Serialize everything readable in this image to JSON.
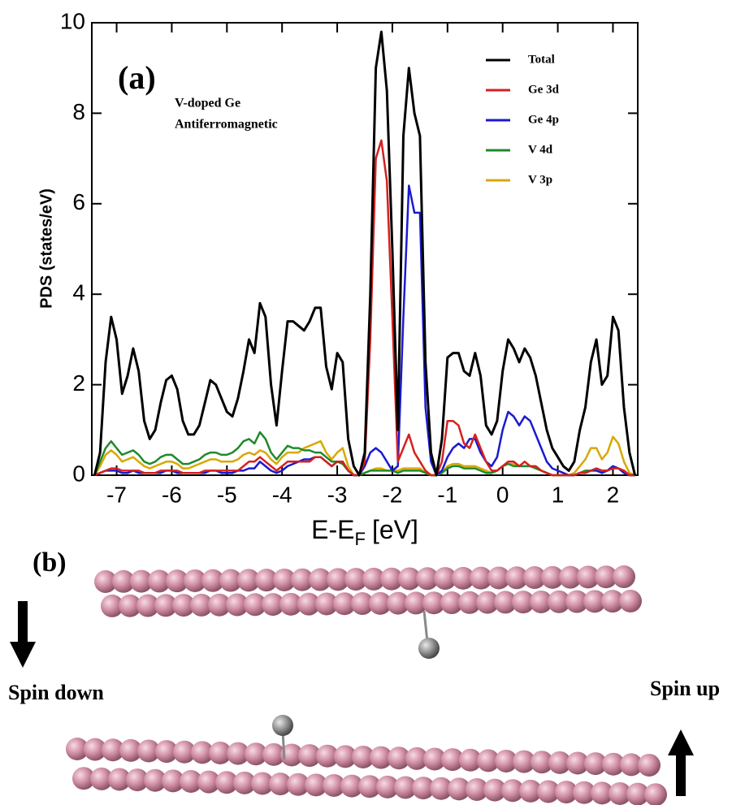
{
  "chart_data": {
    "type": "line",
    "panel_label": "(a)",
    "annotations": [
      "V-doped Ge",
      "Antiferromagnetic"
    ],
    "ylabel": "PDS (states/eV)",
    "xlabel": {
      "main": "E-E",
      "sub": "F",
      "unit": "[eV]"
    },
    "xlim": [
      -7.45,
      2.45
    ],
    "ylim": [
      0,
      10
    ],
    "xticks": [
      -7,
      -6,
      -5,
      -4,
      -3,
      -2,
      -1,
      0,
      1,
      2
    ],
    "yticks": [
      0,
      2,
      4,
      6,
      8,
      10
    ],
    "legend": "top-right",
    "x": [
      -7.4,
      -7.3,
      -7.2,
      -7.1,
      -7.0,
      -6.9,
      -6.8,
      -6.7,
      -6.6,
      -6.5,
      -6.4,
      -6.3,
      -6.2,
      -6.1,
      -6.0,
      -5.9,
      -5.8,
      -5.7,
      -5.6,
      -5.5,
      -5.4,
      -5.3,
      -5.2,
      -5.1,
      -5.0,
      -4.9,
      -4.8,
      -4.7,
      -4.6,
      -4.5,
      -4.4,
      -4.3,
      -4.2,
      -4.1,
      -4.0,
      -3.9,
      -3.8,
      -3.7,
      -3.6,
      -3.5,
      -3.4,
      -3.3,
      -3.2,
      -3.1,
      -3.0,
      -2.9,
      -2.8,
      -2.7,
      -2.6,
      -2.5,
      -2.4,
      -2.3,
      -2.2,
      -2.1,
      -2.0,
      -1.9,
      -1.8,
      -1.7,
      -1.6,
      -1.5,
      -1.4,
      -1.3,
      -1.2,
      -1.1,
      -1.0,
      -0.9,
      -0.8,
      -0.7,
      -0.6,
      -0.5,
      -0.4,
      -0.3,
      -0.2,
      -0.1,
      0.0,
      0.1,
      0.2,
      0.3,
      0.4,
      0.5,
      0.6,
      0.7,
      0.8,
      0.9,
      1.0,
      1.1,
      1.2,
      1.3,
      1.4,
      1.5,
      1.6,
      1.7,
      1.8,
      1.9,
      2.0,
      2.1,
      2.2,
      2.3,
      2.4
    ],
    "series": [
      {
        "name": "Total",
        "color": "#000000",
        "values": [
          0.0,
          0.5,
          2.5,
          3.5,
          3.0,
          1.8,
          2.2,
          2.8,
          2.3,
          1.2,
          0.8,
          1.0,
          1.6,
          2.1,
          2.2,
          1.9,
          1.2,
          0.9,
          0.9,
          1.1,
          1.6,
          2.1,
          2.0,
          1.7,
          1.4,
          1.3,
          1.7,
          2.3,
          3.0,
          2.7,
          3.8,
          3.5,
          2.0,
          1.1,
          2.3,
          3.4,
          3.4,
          3.3,
          3.2,
          3.4,
          3.7,
          3.7,
          2.4,
          1.9,
          2.7,
          2.5,
          0.8,
          0.2,
          0.0,
          0.5,
          4.0,
          9.0,
          9.8,
          8.5,
          5.0,
          1.0,
          7.5,
          9.0,
          8.0,
          7.5,
          2.5,
          0.5,
          0.0,
          0.8,
          2.6,
          2.7,
          2.7,
          2.3,
          2.2,
          2.7,
          2.2,
          1.1,
          0.9,
          1.2,
          2.3,
          3.0,
          2.8,
          2.5,
          2.8,
          2.6,
          2.2,
          1.6,
          1.0,
          0.6,
          0.4,
          0.2,
          0.1,
          0.3,
          1.0,
          1.5,
          2.5,
          3.0,
          2.0,
          2.2,
          3.5,
          3.2,
          1.5,
          0.5,
          0.0
        ]
      },
      {
        "name": "Ge 3d",
        "color": "#d42020",
        "values": [
          0,
          0.05,
          0.1,
          0.15,
          0.15,
          0.1,
          0.1,
          0.1,
          0.1,
          0.05,
          0.05,
          0.05,
          0.1,
          0.1,
          0.1,
          0.1,
          0.05,
          0.05,
          0.05,
          0.05,
          0.1,
          0.1,
          0.1,
          0.1,
          0.1,
          0.1,
          0.1,
          0.2,
          0.3,
          0.3,
          0.4,
          0.3,
          0.2,
          0.1,
          0.2,
          0.3,
          0.3,
          0.3,
          0.3,
          0.3,
          0.4,
          0.4,
          0.3,
          0.2,
          0.3,
          0.3,
          0.1,
          0.0,
          0.0,
          0.3,
          3.0,
          7.0,
          7.4,
          6.5,
          3.5,
          0.3,
          0.6,
          0.9,
          0.5,
          0.3,
          0.1,
          0.0,
          0.0,
          0.3,
          1.2,
          1.2,
          1.1,
          0.7,
          0.6,
          0.9,
          0.6,
          0.3,
          0.1,
          0.1,
          0.2,
          0.3,
          0.3,
          0.2,
          0.3,
          0.2,
          0.2,
          0.1,
          0.05,
          0.0,
          0.0,
          0.0,
          0.0,
          0.0,
          0.05,
          0.05,
          0.1,
          0.15,
          0.1,
          0.1,
          0.15,
          0.15,
          0.1,
          0.0,
          0.0
        ]
      },
      {
        "name": "Ge 4p",
        "color": "#1a1ad0",
        "values": [
          0,
          0.05,
          0.1,
          0.1,
          0.1,
          0.05,
          0.05,
          0.1,
          0.05,
          0.05,
          0.05,
          0.05,
          0.05,
          0.1,
          0.1,
          0.05,
          0.05,
          0.05,
          0.05,
          0.05,
          0.05,
          0.1,
          0.1,
          0.05,
          0.05,
          0.05,
          0.1,
          0.1,
          0.15,
          0.15,
          0.3,
          0.2,
          0.1,
          0.05,
          0.1,
          0.2,
          0.25,
          0.3,
          0.35,
          0.35,
          0.4,
          0.4,
          0.3,
          0.2,
          0.3,
          0.3,
          0.1,
          0.0,
          0.0,
          0.2,
          0.5,
          0.6,
          0.5,
          0.3,
          0.1,
          0.2,
          3.5,
          6.4,
          5.8,
          5.8,
          1.5,
          0.3,
          0.0,
          0.1,
          0.4,
          0.6,
          0.7,
          0.6,
          0.8,
          0.8,
          0.5,
          0.3,
          0.2,
          0.4,
          1.0,
          1.4,
          1.3,
          1.1,
          1.3,
          1.2,
          0.9,
          0.6,
          0.3,
          0.15,
          0.1,
          0.05,
          0.0,
          0.0,
          0.05,
          0.05,
          0.1,
          0.1,
          0.05,
          0.1,
          0.2,
          0.15,
          0.05,
          0.0,
          0.0
        ]
      },
      {
        "name": "V 4d",
        "color": "#1f8a2a",
        "values": [
          0.0,
          0.3,
          0.6,
          0.75,
          0.6,
          0.45,
          0.5,
          0.55,
          0.45,
          0.3,
          0.25,
          0.3,
          0.4,
          0.45,
          0.45,
          0.35,
          0.25,
          0.25,
          0.3,
          0.35,
          0.45,
          0.5,
          0.5,
          0.45,
          0.45,
          0.5,
          0.6,
          0.75,
          0.8,
          0.7,
          0.95,
          0.8,
          0.5,
          0.35,
          0.5,
          0.65,
          0.6,
          0.6,
          0.55,
          0.55,
          0.5,
          0.5,
          0.4,
          0.3,
          0.3,
          0.25,
          0.1,
          0.0,
          0.0,
          0.05,
          0.1,
          0.1,
          0.1,
          0.1,
          0.1,
          0.05,
          0.1,
          0.1,
          0.1,
          0.1,
          0.05,
          0.0,
          0.0,
          0.05,
          0.15,
          0.2,
          0.2,
          0.15,
          0.15,
          0.15,
          0.1,
          0.05,
          0.05,
          0.1,
          0.2,
          0.25,
          0.2,
          0.2,
          0.2,
          0.2,
          0.15,
          0.1,
          0.05,
          0.0,
          0.0,
          0.0,
          0.0,
          0.0,
          0.05,
          0.1,
          0.1,
          0.15,
          0.1,
          0.1,
          0.2,
          0.15,
          0.1,
          0.0,
          0.0
        ]
      },
      {
        "name": "V 3p",
        "color": "#d8a800",
        "values": [
          0.0,
          0.2,
          0.45,
          0.55,
          0.45,
          0.3,
          0.35,
          0.4,
          0.3,
          0.2,
          0.15,
          0.2,
          0.25,
          0.3,
          0.3,
          0.25,
          0.15,
          0.15,
          0.2,
          0.25,
          0.3,
          0.35,
          0.35,
          0.3,
          0.3,
          0.3,
          0.35,
          0.45,
          0.5,
          0.45,
          0.55,
          0.5,
          0.35,
          0.25,
          0.4,
          0.5,
          0.5,
          0.5,
          0.6,
          0.65,
          0.7,
          0.75,
          0.5,
          0.35,
          0.5,
          0.6,
          0.2,
          0.0,
          0.0,
          0.05,
          0.1,
          0.15,
          0.15,
          0.1,
          0.1,
          0.1,
          0.15,
          0.15,
          0.15,
          0.15,
          0.05,
          0.0,
          0.0,
          0.05,
          0.2,
          0.25,
          0.25,
          0.2,
          0.2,
          0.2,
          0.15,
          0.1,
          0.05,
          0.1,
          0.2,
          0.25,
          0.25,
          0.2,
          0.2,
          0.2,
          0.15,
          0.1,
          0.05,
          0.0,
          0.0,
          0.0,
          0.0,
          0.05,
          0.2,
          0.35,
          0.6,
          0.6,
          0.35,
          0.5,
          0.85,
          0.7,
          0.3,
          0.05,
          0.0
        ]
      }
    ]
  },
  "panel_b": {
    "label": "(b)",
    "spin_down": "Spin down",
    "spin_up": "Spin up"
  }
}
